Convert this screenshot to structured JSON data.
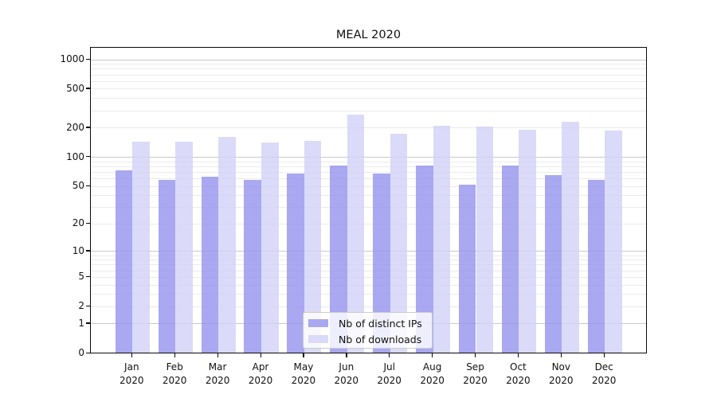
{
  "chart_data": {
    "type": "bar",
    "title": "MEAL 2020",
    "categories": [
      "Jan",
      "Feb",
      "Mar",
      "Apr",
      "May",
      "Jun",
      "Jul",
      "Aug",
      "Sep",
      "Oct",
      "Nov",
      "Dec"
    ],
    "category_sub_label": "2020",
    "series": [
      {
        "name": "Nb of distinct IPs",
        "color": "#a9a8f0",
        "base_rgb": "148,146,236",
        "values": [
          72,
          57,
          62,
          57,
          67,
          80,
          66,
          81,
          51,
          81,
          64,
          57
        ]
      },
      {
        "name": "Nb of downloads",
        "color": "#dbdaf8",
        "base_rgb": "210,209,246",
        "values": [
          142,
          141,
          158,
          139,
          145,
          270,
          171,
          206,
          203,
          188,
          228,
          186
        ]
      }
    ],
    "bar_alpha": 0.8,
    "yscale": "log1p",
    "ylim": [
      0,
      1325
    ],
    "yticks": [
      0,
      1,
      2,
      5,
      10,
      20,
      50,
      100,
      200,
      500,
      1000
    ],
    "major_gridlines": [
      1,
      10,
      100,
      1000
    ],
    "minor_gridlines": [
      2,
      3,
      4,
      5,
      6,
      7,
      8,
      9,
      20,
      30,
      40,
      50,
      60,
      70,
      80,
      90,
      200,
      300,
      400,
      500,
      600,
      700,
      800,
      900
    ],
    "grid": "both",
    "legend": {
      "position": "lower center"
    }
  }
}
